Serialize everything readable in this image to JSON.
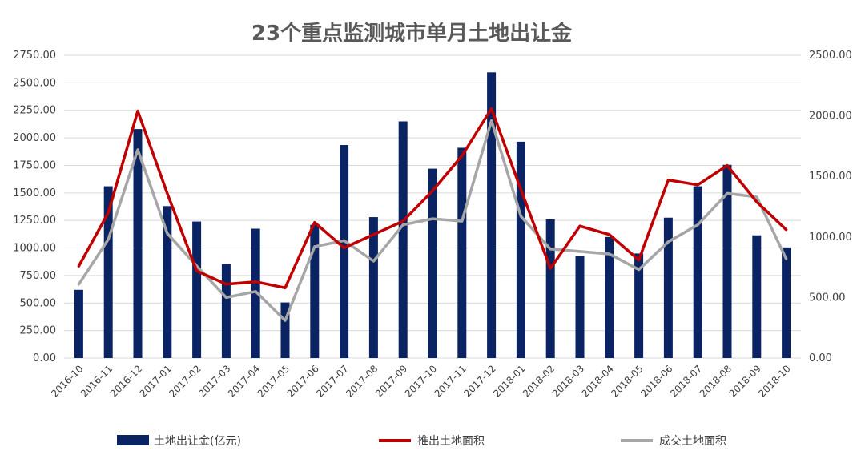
{
  "chart_data": {
    "type": "bar",
    "title": "23个重点监测城市单月土地出让金",
    "categories": [
      "2016-10",
      "2016-11",
      "2016-12",
      "2017-01",
      "2017-02",
      "2017-03",
      "2017-04",
      "2017-05",
      "2017-06",
      "2017-07",
      "2017-08",
      "2017-09",
      "2017-10",
      "2017-11",
      "2017-12",
      "2018-01",
      "2018-02",
      "2018-03",
      "2018-04",
      "2018-05",
      "2018-06",
      "2018-07",
      "2018-08",
      "2018-09",
      "2018-10"
    ],
    "left_axis": {
      "ylim": [
        0,
        2750
      ],
      "ticks": [
        "0.00",
        "250.00",
        "500.00",
        "750.00",
        "1000.00",
        "1250.00",
        "1500.00",
        "1750.00",
        "2000.00",
        "2250.00",
        "2500.00",
        "2750.00"
      ]
    },
    "right_axis": {
      "ylim": [
        0,
        2500
      ],
      "ticks": [
        "0.00",
        "500.00",
        "1000.00",
        "1500.00",
        "2000.00",
        "2500.00"
      ]
    },
    "series": [
      {
        "name": "土地出让金(亿元)",
        "type": "bar",
        "axis": "left",
        "color": "#0a2463",
        "values": [
          620,
          1560,
          2080,
          1380,
          1240,
          855,
          1175,
          505,
          1210,
          1935,
          1280,
          2150,
          1720,
          1910,
          2595,
          1965,
          1260,
          925,
          1100,
          950,
          1275,
          1560,
          1755,
          1115,
          1005
        ]
      },
      {
        "name": "推出土地面积",
        "type": "line",
        "axis": "right",
        "color": "#c00000",
        "values": [
          760,
          1200,
          2040,
          1360,
          720,
          610,
          630,
          580,
          1120,
          910,
          1020,
          1130,
          1380,
          1670,
          2060,
          1390,
          740,
          1090,
          1020,
          810,
          1470,
          1430,
          1590,
          1290,
          1060
        ]
      },
      {
        "name": "成交土地面积",
        "type": "line",
        "axis": "right",
        "color": "#a6a6a6",
        "values": [
          610,
          980,
          1720,
          1030,
          760,
          500,
          550,
          310,
          920,
          970,
          800,
          1100,
          1150,
          1130,
          1960,
          1170,
          900,
          880,
          860,
          730,
          960,
          1100,
          1360,
          1330,
          820
        ]
      }
    ],
    "grid": true,
    "legend_position": "bottom"
  }
}
